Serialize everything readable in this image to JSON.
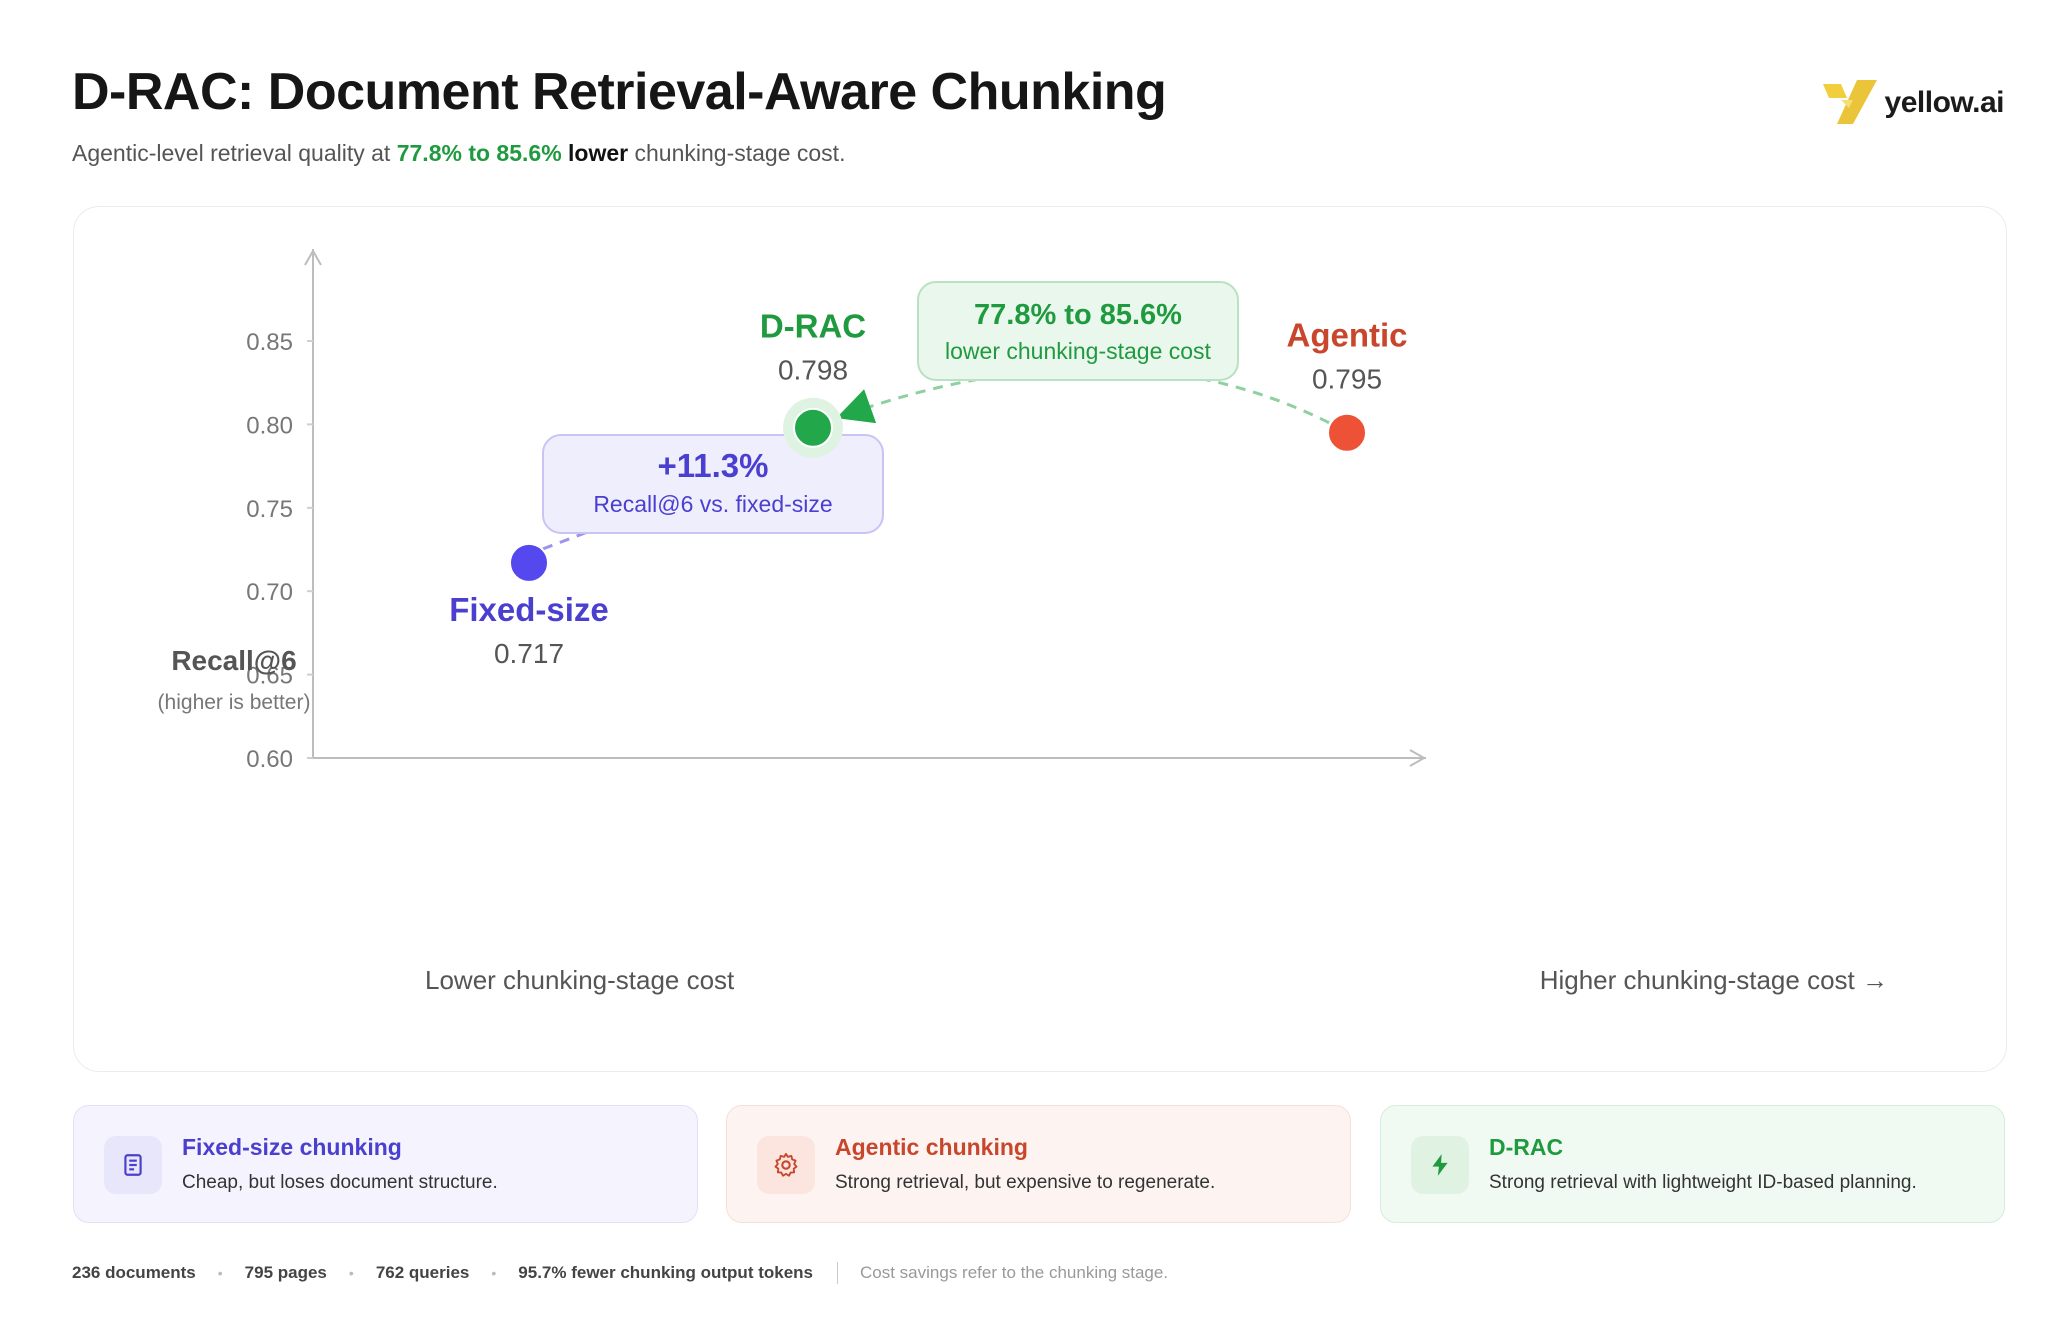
{
  "header": {
    "title": "D-RAC: Document Retrieval-Aware Chunking",
    "subtitle_pre": "Agentic-level retrieval quality at ",
    "subtitle_highlight": "77.8% to 85.6%",
    "subtitle_bold": "lower",
    "subtitle_post": " chunking-stage cost."
  },
  "logo": {
    "text": "yellow.ai",
    "icon": "yellow-ai-logo-mark"
  },
  "chart_data": {
    "type": "scatter",
    "title": "",
    "ylabel": "Recall@6",
    "ylabel_sub": "(higher is better)",
    "xlabel_left": "Lower chunking-stage cost",
    "xlabel_right": "Higher chunking-stage cost →",
    "ylim": [
      0.6,
      0.85
    ],
    "yticks": [
      "0.85",
      "0.80",
      "0.75",
      "0.70",
      "0.65",
      "0.60"
    ],
    "x_axis": "relative chunking-stage cost (unlabeled, low to high)",
    "points": [
      {
        "name": "Fixed-size",
        "recall": 0.717,
        "label": "0.717",
        "cost_rank": 1,
        "color": "#5548ee"
      },
      {
        "name": "D-RAC",
        "recall": 0.798,
        "label": "0.798",
        "cost_rank": 2,
        "color": "#22a84a"
      },
      {
        "name": "Agentic",
        "recall": 0.795,
        "label": "0.795",
        "cost_rank": 3,
        "color": "#ee5236"
      }
    ],
    "annotations": [
      {
        "from": "Fixed-size",
        "to": "D-RAC",
        "headline": "+11.3%",
        "text": "Recall@6 vs. fixed-size",
        "color": "#4a3fcf"
      },
      {
        "from": "Agentic",
        "to": "D-RAC",
        "headline": "77.8% to 85.6%",
        "text": "lower chunking-stage cost",
        "color": "#1f9a3f"
      }
    ],
    "grid": false
  },
  "legend": [
    {
      "title": "Fixed-size chunking",
      "desc": "Cheap, but loses document structure.",
      "icon": "document-icon",
      "color": "#4a3fcf",
      "bg": "#f5f4fe",
      "border": "#e2e0f8",
      "icon_bg": "#e8e6fb"
    },
    {
      "title": "Agentic chunking",
      "desc": "Strong retrieval, but expensive to regenerate.",
      "icon": "gear-icon",
      "color": "#c8462c",
      "bg": "#fdf4f1",
      "border": "#f6dfd7",
      "icon_bg": "#fbe5de"
    },
    {
      "title": "D-RAC",
      "desc": "Strong retrieval with lightweight ID-based planning.",
      "icon": "lightning-icon",
      "color": "#1f9a3f",
      "bg": "#f1faf2",
      "border": "#d5eed9",
      "icon_bg": "#e0f3e3"
    }
  ],
  "footer": {
    "stats": [
      "236 documents",
      "795 pages",
      "762 queries",
      "95.7% fewer chunking output tokens"
    ],
    "note": "Cost savings refer to the chunking stage."
  }
}
